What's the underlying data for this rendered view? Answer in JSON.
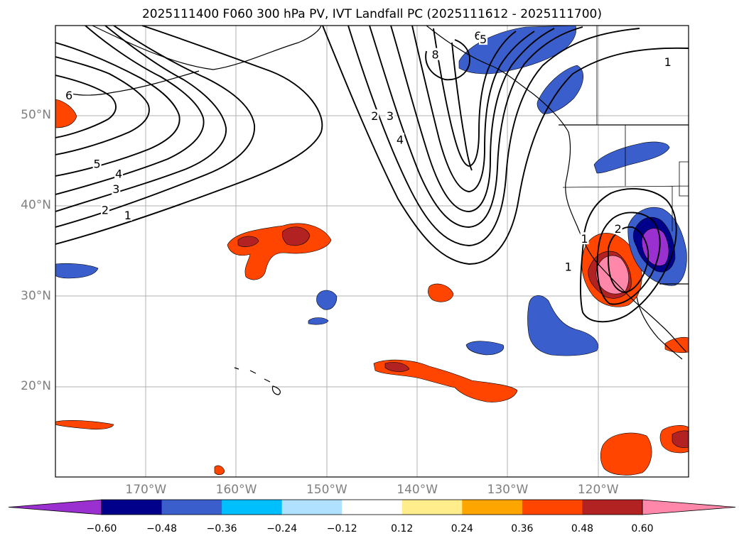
{
  "title": "2025111400 F060 300 hPa PV, IVT Landfall PC (2025111612 - 2025111700)",
  "map": {
    "lon_range": [
      -180,
      -110
    ],
    "lat_range": [
      10,
      60
    ],
    "lat_labels": [
      {
        "lat": 50,
        "text": "50°N"
      },
      {
        "lat": 40,
        "text": "40°N"
      },
      {
        "lat": 30,
        "text": "30°N"
      },
      {
        "lat": 20,
        "text": "20°N"
      }
    ],
    "lon_labels": [
      {
        "lon": -170,
        "text": "170°W"
      },
      {
        "lon": -160,
        "text": "160°W"
      },
      {
        "lon": -150,
        "text": "150°W"
      },
      {
        "lon": -140,
        "text": "140°W"
      },
      {
        "lon": -130,
        "text": "130°W"
      },
      {
        "lon": -120,
        "text": "120°W"
      }
    ],
    "contour_labels": [
      {
        "text": "6",
        "lon": -178.5,
        "lat": 52.3
      },
      {
        "text": "5",
        "lon": -175.4,
        "lat": 44.7
      },
      {
        "text": "4",
        "lon": -173.0,
        "lat": 43.6
      },
      {
        "text": "3",
        "lon": -173.3,
        "lat": 41.9
      },
      {
        "text": "2",
        "lon": -174.5,
        "lat": 39.6
      },
      {
        "text": "1",
        "lon": -172.0,
        "lat": 39.0
      },
      {
        "text": "8",
        "lon": -138.0,
        "lat": 56.8
      },
      {
        "text": "6",
        "lon": -133.3,
        "lat": 58.9
      },
      {
        "text": "5",
        "lon": -132.7,
        "lat": 58.5
      },
      {
        "text": "2",
        "lon": -144.7,
        "lat": 50.0
      },
      {
        "text": "3",
        "lon": -143.0,
        "lat": 50.0
      },
      {
        "text": "4",
        "lon": -141.9,
        "lat": 47.4
      },
      {
        "text": "1",
        "lon": -112.3,
        "lat": 56.0
      },
      {
        "text": "1",
        "lon": -123.3,
        "lat": 33.3
      },
      {
        "text": "1",
        "lon": -121.5,
        "lat": 36.4
      },
      {
        "text": "2",
        "lon": -117.8,
        "lat": 37.5
      }
    ]
  },
  "colorbar": {
    "colors": [
      "#9b30d0",
      "#00008b",
      "#3a5fcd",
      "#00bfff",
      "#b0e2ff",
      "#ffffff",
      "#ffec8b",
      "#ffa500",
      "#ff4500",
      "#b22222",
      "#ff88aa"
    ],
    "tick_labels": [
      "−0.60",
      "−0.48",
      "−0.36",
      "−0.24",
      "−0.12",
      "0.12",
      "0.24",
      "0.36",
      "0.48",
      "0.60"
    ]
  }
}
